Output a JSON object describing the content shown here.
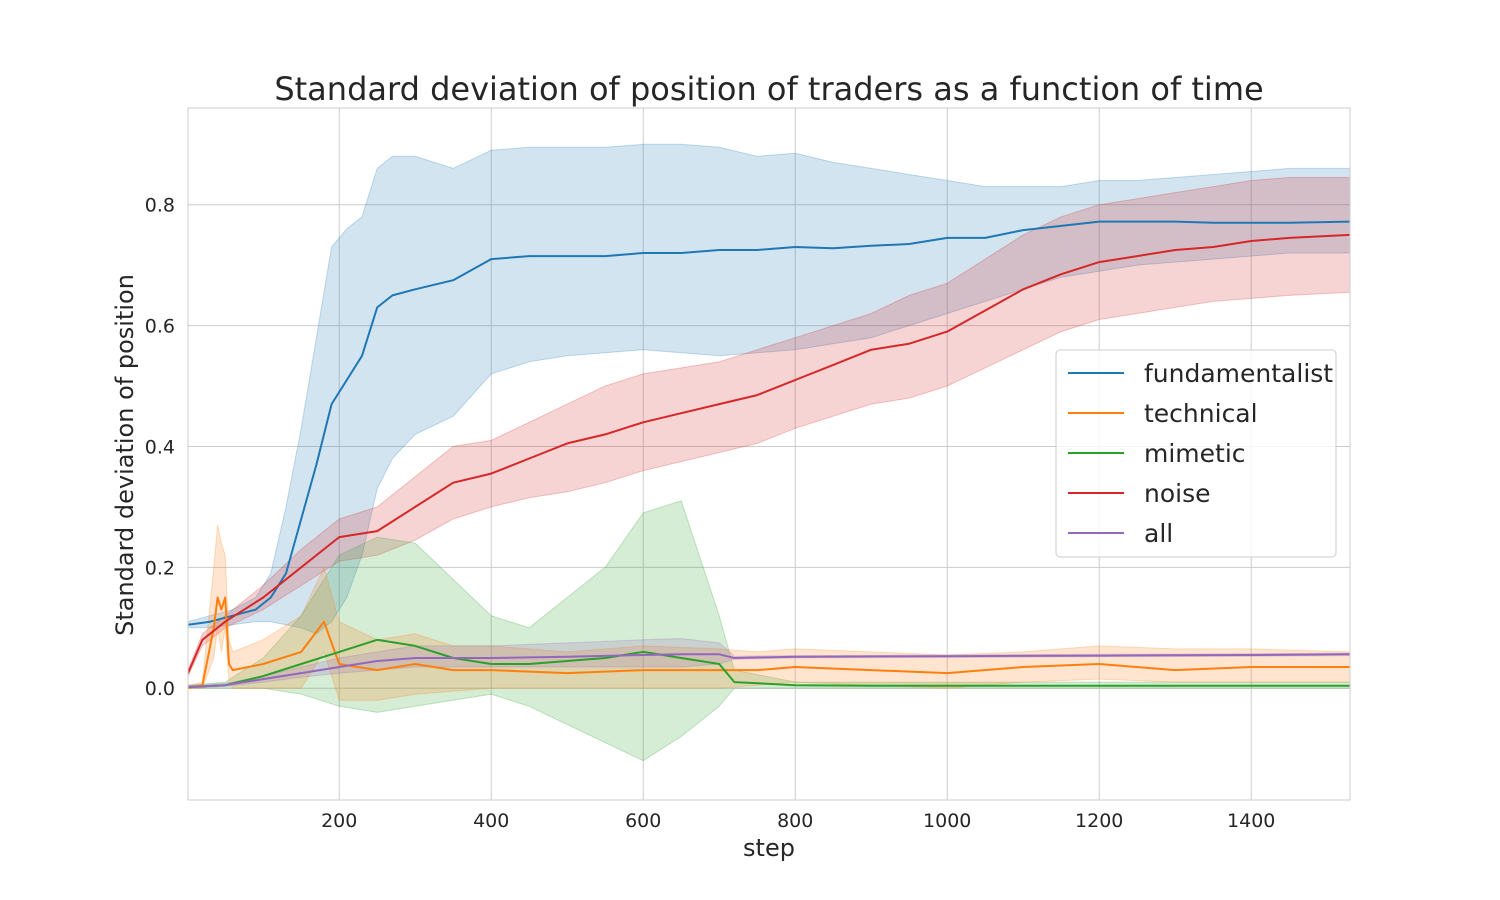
{
  "chart_data": {
    "type": "line",
    "title": "Standard deviation of position of traders as a function of time",
    "xlabel": "step",
    "ylabel": "Standard deviation of position",
    "xlim": [
      1,
      1530
    ],
    "ylim": [
      -0.185,
      0.96
    ],
    "xticks": [
      200,
      400,
      600,
      800,
      1000,
      1200,
      1400
    ],
    "yticks": [
      0.0,
      0.2,
      0.4,
      0.6,
      0.8
    ],
    "ytick_labels": [
      "0.0",
      "0.2",
      "0.4",
      "0.6",
      "0.8"
    ],
    "grid": true,
    "legend_position": "center-right",
    "series": [
      {
        "name": "fundamentalist",
        "color": "#1f77b4",
        "x": [
          1,
          30,
          60,
          90,
          110,
          130,
          150,
          170,
          190,
          210,
          230,
          250,
          270,
          300,
          350,
          400,
          450,
          500,
          550,
          600,
          650,
          700,
          750,
          800,
          850,
          900,
          950,
          1000,
          1050,
          1100,
          1150,
          1200,
          1250,
          1300,
          1350,
          1400,
          1450,
          1530
        ],
        "mean": [
          0.105,
          0.11,
          0.12,
          0.13,
          0.15,
          0.19,
          0.28,
          0.37,
          0.47,
          0.51,
          0.55,
          0.63,
          0.65,
          0.66,
          0.675,
          0.71,
          0.715,
          0.715,
          0.715,
          0.72,
          0.72,
          0.725,
          0.725,
          0.73,
          0.728,
          0.732,
          0.735,
          0.745,
          0.745,
          0.758,
          0.765,
          0.772,
          0.772,
          0.772,
          0.77,
          0.77,
          0.77,
          0.772
        ],
        "lower": [
          0.1,
          0.1,
          0.105,
          0.11,
          0.11,
          0.105,
          0.1,
          0.09,
          0.11,
          0.15,
          0.22,
          0.33,
          0.38,
          0.42,
          0.45,
          0.52,
          0.54,
          0.55,
          0.555,
          0.56,
          0.555,
          0.55,
          0.555,
          0.56,
          0.57,
          0.58,
          0.6,
          0.62,
          0.64,
          0.66,
          0.68,
          0.69,
          0.7,
          0.705,
          0.71,
          0.715,
          0.72,
          0.72
        ],
        "upper": [
          0.11,
          0.12,
          0.13,
          0.15,
          0.19,
          0.3,
          0.43,
          0.58,
          0.73,
          0.76,
          0.78,
          0.86,
          0.88,
          0.88,
          0.86,
          0.89,
          0.895,
          0.895,
          0.895,
          0.9,
          0.9,
          0.895,
          0.88,
          0.885,
          0.87,
          0.86,
          0.85,
          0.84,
          0.83,
          0.83,
          0.83,
          0.84,
          0.84,
          0.845,
          0.85,
          0.855,
          0.86,
          0.86
        ]
      },
      {
        "name": "technical",
        "color": "#ff7f0e",
        "x": [
          1,
          20,
          35,
          40,
          45,
          50,
          55,
          60,
          100,
          150,
          180,
          200,
          250,
          300,
          350,
          400,
          500,
          600,
          700,
          750,
          800,
          900,
          1000,
          1100,
          1200,
          1300,
          1400,
          1530
        ],
        "mean": [
          0.0,
          0.005,
          0.1,
          0.15,
          0.13,
          0.15,
          0.04,
          0.03,
          0.04,
          0.06,
          0.11,
          0.04,
          0.03,
          0.04,
          0.03,
          0.03,
          0.025,
          0.03,
          0.03,
          0.03,
          0.035,
          0.03,
          0.025,
          0.035,
          0.04,
          0.03,
          0.035,
          0.035
        ],
        "lower": [
          0.0,
          0.0,
          0.05,
          0.1,
          0.06,
          0.1,
          0.01,
          0.0,
          0.0,
          0.0,
          0.06,
          -0.02,
          -0.02,
          -0.01,
          -0.005,
          0.0,
          0.0,
          0.0,
          0.0,
          0.005,
          0.01,
          0.005,
          0.0,
          0.01,
          0.015,
          0.01,
          0.01,
          0.01
        ],
        "upper": [
          0.005,
          0.01,
          0.2,
          0.27,
          0.24,
          0.22,
          0.08,
          0.06,
          0.08,
          0.12,
          0.2,
          0.11,
          0.08,
          0.09,
          0.07,
          0.07,
          0.06,
          0.07,
          0.065,
          0.06,
          0.065,
          0.06,
          0.055,
          0.06,
          0.07,
          0.065,
          0.065,
          0.06
        ]
      },
      {
        "name": "mimetic",
        "color": "#2ca02c",
        "x": [
          1,
          50,
          100,
          150,
          200,
          250,
          300,
          350,
          400,
          450,
          500,
          550,
          600,
          650,
          700,
          720,
          800,
          900,
          1000,
          1200,
          1400,
          1530
        ],
        "mean": [
          0.002,
          0.005,
          0.02,
          0.04,
          0.06,
          0.08,
          0.07,
          0.05,
          0.04,
          0.04,
          0.045,
          0.05,
          0.06,
          0.05,
          0.04,
          0.01,
          0.005,
          0.004,
          0.004,
          0.004,
          0.004,
          0.004
        ],
        "lower": [
          0.0,
          0.0,
          0.0,
          -0.01,
          -0.03,
          -0.04,
          -0.03,
          -0.02,
          -0.01,
          -0.03,
          -0.06,
          -0.09,
          -0.12,
          -0.08,
          -0.03,
          0.0,
          0.0,
          0.0,
          0.0,
          0.0,
          0.0,
          0.0
        ],
        "upper": [
          0.005,
          0.01,
          0.05,
          0.12,
          0.22,
          0.25,
          0.24,
          0.18,
          0.12,
          0.1,
          0.15,
          0.2,
          0.29,
          0.31,
          0.12,
          0.03,
          0.01,
          0.01,
          0.01,
          0.01,
          0.01,
          0.01
        ]
      },
      {
        "name": "noise",
        "color": "#d62728",
        "x": [
          1,
          20,
          50,
          100,
          150,
          200,
          250,
          300,
          350,
          400,
          450,
          500,
          550,
          600,
          650,
          700,
          750,
          800,
          850,
          900,
          950,
          1000,
          1050,
          1100,
          1150,
          1200,
          1250,
          1300,
          1350,
          1400,
          1450,
          1530
        ],
        "mean": [
          0.025,
          0.08,
          0.11,
          0.15,
          0.2,
          0.25,
          0.26,
          0.3,
          0.34,
          0.355,
          0.38,
          0.405,
          0.42,
          0.44,
          0.455,
          0.47,
          0.485,
          0.51,
          0.535,
          0.56,
          0.57,
          0.59,
          0.625,
          0.66,
          0.685,
          0.705,
          0.715,
          0.725,
          0.73,
          0.74,
          0.745,
          0.75
        ],
        "lower": [
          0.02,
          0.07,
          0.1,
          0.13,
          0.17,
          0.21,
          0.22,
          0.245,
          0.28,
          0.3,
          0.315,
          0.325,
          0.34,
          0.36,
          0.375,
          0.39,
          0.405,
          0.43,
          0.45,
          0.47,
          0.48,
          0.5,
          0.53,
          0.56,
          0.59,
          0.61,
          0.62,
          0.63,
          0.64,
          0.645,
          0.65,
          0.655
        ],
        "upper": [
          0.03,
          0.09,
          0.12,
          0.17,
          0.23,
          0.28,
          0.3,
          0.35,
          0.4,
          0.41,
          0.44,
          0.47,
          0.5,
          0.52,
          0.53,
          0.54,
          0.56,
          0.58,
          0.6,
          0.62,
          0.65,
          0.67,
          0.71,
          0.75,
          0.78,
          0.8,
          0.81,
          0.82,
          0.83,
          0.84,
          0.845,
          0.845
        ]
      },
      {
        "name": "all",
        "color": "#9467bd",
        "x": [
          1,
          50,
          100,
          150,
          200,
          250,
          300,
          400,
          500,
          600,
          650,
          700,
          720,
          800,
          1000,
          1200,
          1400,
          1530
        ],
        "mean": [
          0.002,
          0.005,
          0.015,
          0.025,
          0.035,
          0.045,
          0.05,
          0.05,
          0.052,
          0.055,
          0.056,
          0.056,
          0.05,
          0.052,
          0.053,
          0.054,
          0.055,
          0.056
        ],
        "lower": [
          0.0,
          0.003,
          0.01,
          0.018,
          0.025,
          0.03,
          0.035,
          0.035,
          0.035,
          0.035,
          0.035,
          0.04,
          0.048,
          0.05,
          0.051,
          0.052,
          0.053,
          0.054
        ],
        "upper": [
          0.004,
          0.008,
          0.02,
          0.035,
          0.05,
          0.06,
          0.07,
          0.07,
          0.075,
          0.08,
          0.082,
          0.075,
          0.053,
          0.054,
          0.055,
          0.056,
          0.057,
          0.058
        ]
      }
    ]
  }
}
